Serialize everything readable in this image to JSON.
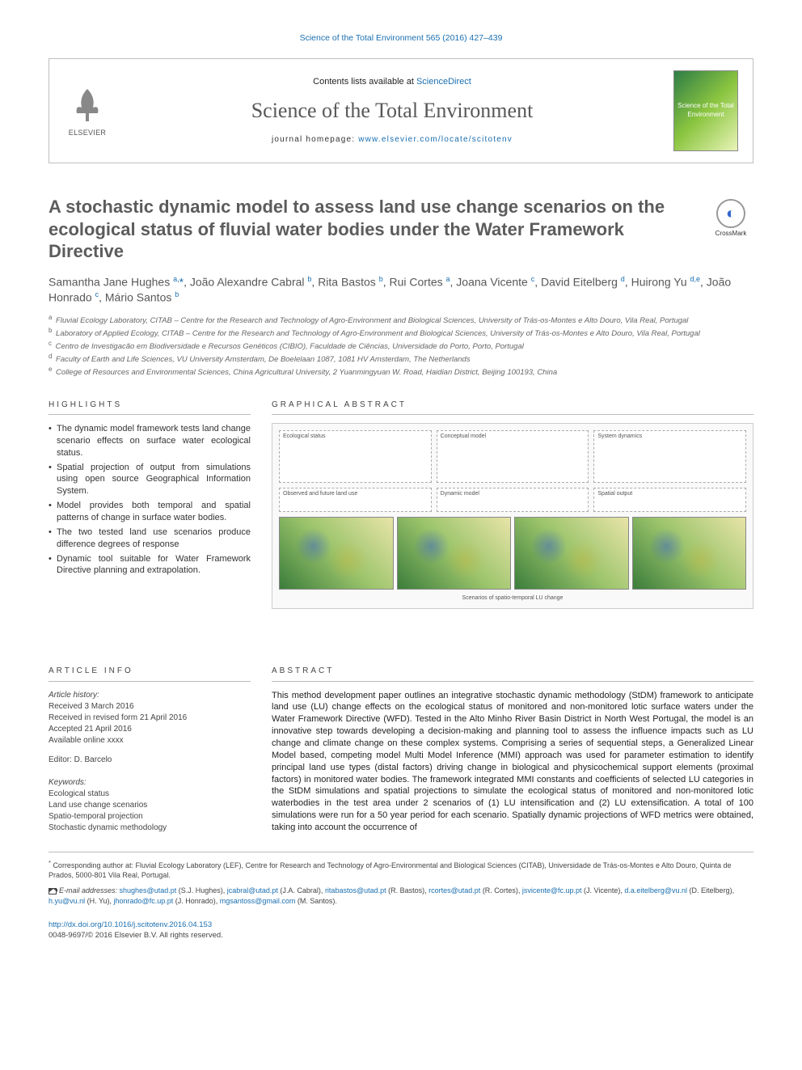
{
  "top_citation": "Science of the Total Environment 565 (2016) 427–439",
  "header": {
    "publisher": "ELSEVIER",
    "contents_prefix": "Contents lists available at ",
    "contents_link": "ScienceDirect",
    "journal_title": "Science of the Total Environment",
    "homepage_label": "journal homepage: ",
    "homepage_url": "www.elsevier.com/locate/scitotenv",
    "cover_caption": "Science of the Total Environment"
  },
  "crossmark": "CrossMark",
  "title": "A stochastic dynamic model to assess land use change scenarios on the ecological status of fluvial water bodies under the Water Framework Directive",
  "authors_html": "Samantha Jane Hughes <sup>a,</sup><span class='star'>*</span>, João Alexandre Cabral <sup>b</sup>, Rita Bastos <sup>b</sup>, Rui Cortes <sup>a</sup>, Joana Vicente <sup>c</sup>, David Eitelberg <sup>d</sup>, Huirong Yu <sup>d,e</sup>, João Honrado <sup>c</sup>, Mário Santos <sup>b</sup>",
  "affiliations": [
    {
      "k": "a",
      "t": "Fluvial Ecology Laboratory, CITAB – Centre for the Research and Technology of Agro-Environment and Biological Sciences, University of Trás-os-Montes e Alto Douro, Vila Real, Portugal"
    },
    {
      "k": "b",
      "t": "Laboratory of Applied Ecology, CITAB – Centre for the Research and Technology of Agro-Environment and Biological Sciences, University of Trás-os-Montes e Alto Douro, Vila Real, Portugal"
    },
    {
      "k": "c",
      "t": "Centro de Investigacão em Biodiversidade e Recursos Genéticos (CIBIO), Faculdade de Ciências, Universidade do Porto, Porto, Portugal"
    },
    {
      "k": "d",
      "t": "Faculty of Earth and Life Sciences, VU University Amsterdam, De Boelelaan 1087, 1081 HV Amsterdam, The Netherlands"
    },
    {
      "k": "e",
      "t": "College of Resources and Environmental Sciences, China Agricultural University, 2 Yuanmingyuan W. Road, Haidian District, Beijing 100193, China"
    }
  ],
  "highlights_heading": "HIGHLIGHTS",
  "highlights": [
    "The dynamic model framework tests land change scenario effects on surface water ecological status.",
    "Spatial projection of output from simulations using open source Geographical Information System.",
    "Model provides both temporal and spatial patterns of change in surface water bodies.",
    "The two tested land use scenarios produce difference degrees of response",
    "Dynamic tool suitable for Water Framework Directive planning and extrapolation."
  ],
  "ga_heading": "GRAPHICAL ABSTRACT",
  "ga_labels": {
    "bl1": "Ecological status",
    "bl2": "Observed and future land use",
    "bl3": "Conceptual model",
    "bl4": "Dynamic model",
    "bl5": "System dynamics",
    "bl6": "Spatial output",
    "bottom": "Scenarios of spatio-temporal LU change"
  },
  "article_info_heading": "ARTICLE INFO",
  "article_info": {
    "hist_label": "Article history:",
    "received": "Received 3 March 2016",
    "revised": "Received in revised form 21 April 2016",
    "accepted": "Accepted 21 April 2016",
    "online": "Available online xxxx",
    "editor": "Editor: D. Barcelo"
  },
  "keywords_heading": "Keywords:",
  "keywords": [
    "Ecological status",
    "Land use change scenarios",
    "Spatio-temporal projection",
    "Stochastic dynamic methodology"
  ],
  "abstract_heading": "ABSTRACT",
  "abstract": "This method development paper outlines an integrative stochastic dynamic methodology (StDM) framework to anticipate land use (LU) change effects on the ecological status of monitored and non-monitored lotic surface waters under the Water Framework Directive (WFD). Tested in the Alto Minho River Basin District in North West Portugal, the model is an innovative step towards developing a decision-making and planning tool to assess the influence impacts such as LU change and climate change on these complex systems. Comprising a series of sequential steps, a Generalized Linear Model based, competing model Multi Model Inference (MMI) approach was used for parameter estimation to identify principal land use types (distal factors) driving change in biological and physicochemical support elements (proximal factors) in monitored water bodies. The framework integrated MMI constants and coefficients of selected LU categories in the StDM simulations and spatial projections to simulate the ecological status of monitored and non-monitored lotic waterbodies in the test area under 2 scenarios of (1) LU intensification and (2) LU extensification. A total of 100 simulations were run for a 50 year period for each scenario. Spatially dynamic projections of WFD metrics were obtained, taking into account the occurrence of",
  "corresponding": {
    "star": "*",
    "text": "Corresponding author at: Fluvial Ecology Laboratory (LEF), Centre for Research and Technology of Agro-Environmental and Biological Sciences (CITAB), Universidade de Trás-os-Montes e Alto Douro, Quinta de Prados, 5000-801 Vila Real, Portugal."
  },
  "emails_label": "E-mail addresses: ",
  "emails": [
    {
      "e": "shughes@utad.pt",
      "n": "(S.J. Hughes)"
    },
    {
      "e": "jcabral@utad.pt",
      "n": "(J.A. Cabral)"
    },
    {
      "e": "ritabastos@utad.pt",
      "n": "(R. Bastos)"
    },
    {
      "e": "rcortes@utad.pt",
      "n": "(R. Cortes)"
    },
    {
      "e": "jsvicente@fc.up.pt",
      "n": "(J. Vicente)"
    },
    {
      "e": "d.a.eitelberg@vu.nl",
      "n": "(D. Eitelberg)"
    },
    {
      "e": "h.yu@vu.nl",
      "n": "(H. Yu)"
    },
    {
      "e": "jhonrado@fc.up.pt",
      "n": "(J. Honrado)"
    },
    {
      "e": "mgsantoss@gmail.com",
      "n": "(M. Santos)"
    }
  ],
  "doi": "http://dx.doi.org/10.1016/j.scitotenv.2016.04.153",
  "copyright": "0048-9697/© 2016 Elsevier B.V. All rights reserved.",
  "colors": {
    "link": "#1b6fb0",
    "heading": "#5c5c5c",
    "rule": "#bbbbbb"
  }
}
